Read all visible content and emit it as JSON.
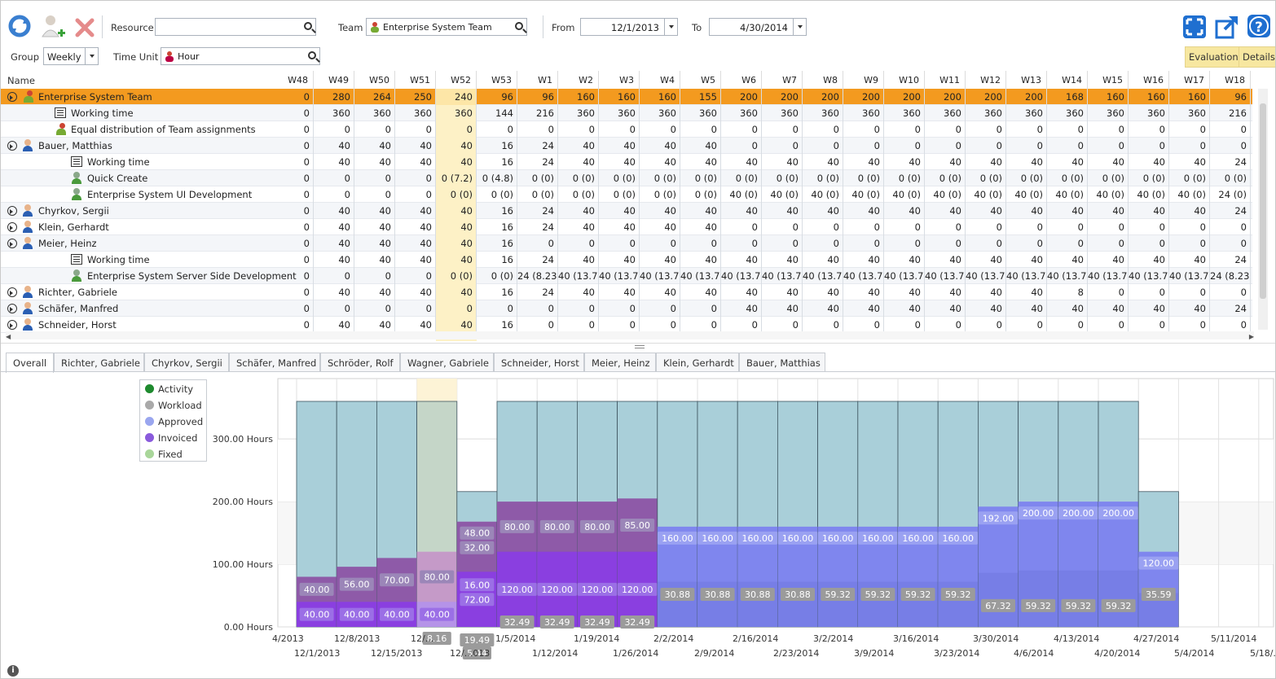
{
  "toolbar": {
    "resource_label": "Resource",
    "resource_value": "",
    "team_label": "Team",
    "team_value": "Enterprise System Team",
    "from_label": "From",
    "from_value": "12/1/2013",
    "to_label": "To",
    "to_value": "4/30/2014",
    "group_label": "Group",
    "group_value": "Weekly",
    "time_unit_label": "Time Unit",
    "time_unit_value": "Hour",
    "evaluation_label": "Evaluation",
    "details_label": "Details",
    "icons": [
      "refresh-icon",
      "add-resource-icon",
      "delete-icon",
      "fit-screen-icon",
      "export-icon",
      "help-icon"
    ]
  },
  "grid": {
    "name_header": "Name",
    "weeks": [
      "W48",
      "W49",
      "W50",
      "W51",
      "W52",
      "W53",
      "W1",
      "W2",
      "W3",
      "W4",
      "W5",
      "W6",
      "W7",
      "W8",
      "W9",
      "W10",
      "W11",
      "W12",
      "W13",
      "W14",
      "W15",
      "W16",
      "W17",
      "W18"
    ],
    "rows": [
      {
        "name": "Enterprise System Team",
        "level": 0,
        "icon": "team",
        "expander": true,
        "type": "team",
        "values": [
          "0",
          "280",
          "264",
          "250",
          "240",
          "96",
          "96",
          "160",
          "160",
          "160",
          "155",
          "200",
          "200",
          "200",
          "200",
          "200",
          "200",
          "200",
          "200",
          "168",
          "160",
          "160",
          "160",
          "96"
        ]
      },
      {
        "name": "Working time",
        "level": 1,
        "icon": "worktime",
        "values": [
          "0",
          "360",
          "360",
          "360",
          "360",
          "144",
          "216",
          "360",
          "360",
          "360",
          "360",
          "360",
          "360",
          "360",
          "360",
          "360",
          "360",
          "360",
          "360",
          "360",
          "360",
          "360",
          "360",
          "216"
        ]
      },
      {
        "name": "Equal distribution of Team assignments",
        "level": 1,
        "icon": "team",
        "values": [
          "0",
          "0",
          "0",
          "0",
          "0",
          "0",
          "0",
          "0",
          "0",
          "0",
          "0",
          "0",
          "0",
          "0",
          "0",
          "0",
          "0",
          "0",
          "0",
          "0",
          "0",
          "0",
          "0",
          "0"
        ]
      },
      {
        "name": "Bauer, Matthias",
        "level": 0,
        "icon": "person",
        "expander": true,
        "values": [
          "0",
          "40",
          "40",
          "40",
          "40",
          "16",
          "24",
          "40",
          "40",
          "40",
          "40",
          "0",
          "0",
          "0",
          "0",
          "0",
          "0",
          "0",
          "0",
          "0",
          "0",
          "0",
          "0",
          "0"
        ]
      },
      {
        "name": "Working time",
        "level": 2,
        "icon": "worktime",
        "values": [
          "0",
          "40",
          "40",
          "40",
          "40",
          "16",
          "24",
          "40",
          "40",
          "40",
          "40",
          "40",
          "40",
          "40",
          "40",
          "40",
          "40",
          "40",
          "40",
          "40",
          "40",
          "40",
          "40",
          "24"
        ]
      },
      {
        "name": "Quick Create",
        "level": 2,
        "icon": "green",
        "values": [
          "0",
          "0",
          "0",
          "0",
          "0 (7.2)",
          "0 (4.8)",
          "0 (0)",
          "0 (0)",
          "0 (0)",
          "0 (0)",
          "0 (0)",
          "0 (0)",
          "0 (0)",
          "0 (0)",
          "0 (0)",
          "0 (0)",
          "0 (0)",
          "0 (0)",
          "0 (0)",
          "0 (0)",
          "0 (0)",
          "0 (0)",
          "0 (0)",
          "0 (0)"
        ]
      },
      {
        "name": "Enterprise System UI Development",
        "level": 2,
        "icon": "green",
        "values": [
          "0",
          "0",
          "0",
          "0",
          "0 (0)",
          "0 (0)",
          "0 (0)",
          "0 (0)",
          "0 (0)",
          "0 (0)",
          "0 (0)",
          "40 (0)",
          "40 (0)",
          "40 (0)",
          "40 (0)",
          "40 (0)",
          "40 (0)",
          "40 (0)",
          "40 (0)",
          "40 (0)",
          "40 (0)",
          "40 (0)",
          "40 (0)",
          "24 (0)"
        ]
      },
      {
        "name": "Chyrkov, Sergii",
        "level": 0,
        "icon": "person",
        "expander": true,
        "values": [
          "0",
          "40",
          "40",
          "40",
          "40",
          "16",
          "24",
          "40",
          "40",
          "40",
          "40",
          "40",
          "40",
          "40",
          "40",
          "40",
          "40",
          "40",
          "40",
          "40",
          "40",
          "40",
          "40",
          "24"
        ]
      },
      {
        "name": "Klein, Gerhardt",
        "level": 0,
        "icon": "person",
        "expander": true,
        "values": [
          "0",
          "40",
          "40",
          "40",
          "40",
          "16",
          "24",
          "40",
          "40",
          "40",
          "40",
          "0",
          "0",
          "0",
          "0",
          "0",
          "0",
          "0",
          "0",
          "0",
          "0",
          "0",
          "0",
          "0"
        ]
      },
      {
        "name": "Meier, Heinz",
        "level": 0,
        "icon": "person",
        "expander": true,
        "values": [
          "0",
          "40",
          "40",
          "40",
          "40",
          "16",
          "0",
          "0",
          "0",
          "0",
          "0",
          "0",
          "0",
          "0",
          "0",
          "0",
          "0",
          "0",
          "0",
          "0",
          "0",
          "0",
          "0",
          "0"
        ]
      },
      {
        "name": "Working time",
        "level": 2,
        "icon": "worktime",
        "values": [
          "0",
          "40",
          "40",
          "40",
          "40",
          "16",
          "24",
          "40",
          "40",
          "40",
          "40",
          "40",
          "40",
          "40",
          "40",
          "40",
          "40",
          "40",
          "40",
          "40",
          "40",
          "40",
          "40",
          "24"
        ]
      },
      {
        "name": "Enterprise System Server Side Development",
        "level": 2,
        "icon": "green",
        "values": [
          "0",
          "0",
          "0",
          "0",
          "0 (0)",
          "0 (0)",
          "24 (8.23",
          "40 (13.7",
          "40 (13.7",
          "40 (13.7",
          "40 (13.7",
          "40 (13.7",
          "40 (13.7",
          "40 (13.7",
          "40 (13.7",
          "40 (13.7",
          "40 (13.7",
          "40 (13.7",
          "40 (13.7",
          "40 (13.7",
          "40 (13.7",
          "40 (13.7",
          "40 (13.7",
          "24 (8.23)"
        ]
      },
      {
        "name": "Richter, Gabriele",
        "level": 0,
        "icon": "person",
        "expander": true,
        "values": [
          "0",
          "40",
          "40",
          "40",
          "40",
          "16",
          "24",
          "40",
          "40",
          "40",
          "40",
          "40",
          "40",
          "40",
          "40",
          "40",
          "40",
          "40",
          "40",
          "8",
          "0",
          "0",
          "0",
          "0"
        ]
      },
      {
        "name": "Schäfer, Manfred",
        "level": 0,
        "icon": "person",
        "expander": true,
        "values": [
          "0",
          "0",
          "0",
          "0",
          "0",
          "0",
          "0",
          "0",
          "0",
          "0",
          "0",
          "40",
          "40",
          "40",
          "40",
          "40",
          "40",
          "40",
          "40",
          "40",
          "40",
          "40",
          "40",
          "24"
        ]
      },
      {
        "name": "Schneider, Horst",
        "level": 0,
        "icon": "person",
        "expander": true,
        "values": [
          "0",
          "40",
          "40",
          "40",
          "40",
          "16",
          "0",
          "0",
          "0",
          "0",
          "0",
          "0",
          "0",
          "0",
          "0",
          "0",
          "0",
          "0",
          "0",
          "0",
          "0",
          "0",
          "0",
          "0"
        ]
      }
    ]
  },
  "tabs": [
    "Overall",
    "Richter, Gabriele",
    "Chyrkov, Sergii",
    "Schäfer, Manfred",
    "Schröder, Rolf",
    "Wagner, Gabriele",
    "Schneider, Horst",
    "Meier, Heinz",
    "Klein, Gerhardt",
    "Bauer, Matthias"
  ],
  "active_tab": "Overall",
  "chart_data": {
    "type": "bar",
    "legend": [
      "Activity",
      "Workload",
      "Approved",
      "Invoiced",
      "Fixed"
    ],
    "legend_colors": {
      "Activity": "#1e8a2e",
      "Workload": "#a9a9a9",
      "Approved": "#9aa6ef",
      "Invoiced": "#8a5bdc",
      "Fixed": "#a9d69a"
    },
    "legend_position": "top-left",
    "y_ticks": [
      "0.00 Hours",
      "100.00 Hours",
      "200.00 Hours",
      "300.00 Hours"
    ],
    "ylim": [
      0,
      360
    ],
    "x_labels_top": [
      "4/2013",
      "12/8/2013",
      "12/...",
      "1/5/2014",
      "1/19/2014",
      "2/2/2014",
      "2/16/2014",
      "3/2/2014",
      "3/16/2014",
      "3/30/2014",
      "4/13/2014",
      "4/27/2014",
      "5/11/2014"
    ],
    "x_labels_bottom": [
      "12/1/2013",
      "12/15/2013",
      "12/...013",
      "1/12/2014",
      "1/26/2014",
      "2/9/2014",
      "2/23/2014",
      "3/9/2014",
      "3/23/2014",
      "4/6/2014",
      "4/20/2014",
      "5/4/2014",
      "5/18/..."
    ],
    "weeks": [
      {
        "capacity": 360,
        "workload": 80,
        "invoiced": 40,
        "labels": [
          "40.00",
          "40.00"
        ]
      },
      {
        "capacity": 360,
        "workload": 96,
        "invoiced": 40,
        "labels": [
          "56.00",
          "40.00"
        ]
      },
      {
        "capacity": 360,
        "workload": 110,
        "invoiced": 40,
        "labels": [
          "70.00",
          "40.00"
        ]
      },
      {
        "capacity": 360,
        "workload": 120,
        "invoiced": 40,
        "labels": [
          "80.00",
          "40.00"
        ],
        "extra": "8.16",
        "highlight": true
      },
      {
        "capacity": 216,
        "workload": 168,
        "invoiced": 88,
        "labels": [
          "48.00",
          "32.00",
          "16.00",
          "72.00"
        ],
        "extra": "19.49",
        "extra2": "5.44"
      },
      {
        "capacity": 360,
        "workload": 200,
        "invoiced": 120,
        "labels": [
          "80.00",
          "120.00"
        ],
        "extra": "32.49"
      },
      {
        "capacity": 360,
        "workload": 200,
        "invoiced": 120,
        "labels": [
          "80.00",
          "120.00"
        ],
        "extra": "32.49"
      },
      {
        "capacity": 360,
        "workload": 200,
        "invoiced": 120,
        "labels": [
          "80.00",
          "120.00"
        ],
        "extra": "32.49"
      },
      {
        "capacity": 360,
        "workload": 205,
        "invoiced": 120,
        "labels": [
          "85.00",
          "120.00"
        ],
        "extra": "32.49"
      },
      {
        "capacity": 360,
        "approved": 160,
        "labels": [
          "160.00"
        ],
        "extra": "30.88"
      },
      {
        "capacity": 360,
        "approved": 160,
        "labels": [
          "160.00"
        ],
        "extra": "30.88"
      },
      {
        "capacity": 360,
        "approved": 160,
        "labels": [
          "160.00"
        ],
        "extra": "30.88"
      },
      {
        "capacity": 360,
        "approved": 160,
        "labels": [
          "160.00"
        ],
        "extra": "30.88"
      },
      {
        "capacity": 360,
        "approved": 160,
        "labels": [
          "160.00"
        ],
        "extra": "59.32"
      },
      {
        "capacity": 360,
        "approved": 160,
        "labels": [
          "160.00"
        ],
        "extra": "59.32"
      },
      {
        "capacity": 360,
        "approved": 160,
        "labels": [
          "160.00"
        ],
        "extra": "59.32"
      },
      {
        "capacity": 360,
        "approved": 160,
        "labels": [
          "160.00"
        ],
        "extra": "59.32"
      },
      {
        "capacity": 360,
        "approved": 192,
        "labels": [
          "192.00"
        ],
        "extra": "67.32"
      },
      {
        "capacity": 360,
        "approved": 200,
        "labels": [
          "200.00"
        ],
        "extra": "59.32"
      },
      {
        "capacity": 360,
        "approved": 200,
        "labels": [
          "200.00"
        ],
        "extra": "59.32"
      },
      {
        "capacity": 360,
        "approved": 200,
        "labels": [
          "200.00"
        ],
        "extra": "59.32"
      },
      {
        "capacity": 216,
        "approved": 120,
        "labels": [
          "120.00"
        ],
        "extra": "35.59"
      }
    ]
  },
  "footer": {
    "info_icon": "info-icon"
  }
}
